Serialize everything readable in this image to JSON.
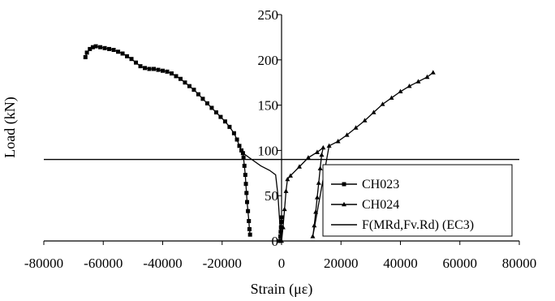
{
  "chart_data": {
    "type": "line",
    "title": "",
    "xlabel": "Strain (με)",
    "ylabel": "Load (kN)",
    "xlim": [
      -80000,
      80000
    ],
    "ylim": [
      0,
      250
    ],
    "xticks": [
      -80000,
      -60000,
      -40000,
      -20000,
      0,
      20000,
      40000,
      60000,
      80000
    ],
    "yticks": [
      0,
      50,
      100,
      150,
      200,
      250
    ],
    "xtick_labels": [
      "-80000",
      "-60000",
      "-40000",
      "-20000",
      "0",
      "20000",
      "40000",
      "60000",
      "80000"
    ],
    "ytick_labels": [
      "0",
      "50",
      "100",
      "150",
      "200",
      "250"
    ],
    "grid": false,
    "legend_position": "bottom-right",
    "series": [
      {
        "name": "CH023",
        "marker": "square",
        "color": "#000000",
        "points": [
          [
            -66000,
            203
          ],
          [
            -65500,
            208
          ],
          [
            -64500,
            212
          ],
          [
            -63500,
            214
          ],
          [
            -62500,
            215
          ],
          [
            -61000,
            214
          ],
          [
            -59500,
            213
          ],
          [
            -58000,
            212
          ],
          [
            -56500,
            211
          ],
          [
            -55000,
            209
          ],
          [
            -53500,
            207
          ],
          [
            -52000,
            204
          ],
          [
            -50500,
            201
          ],
          [
            -49000,
            197
          ],
          [
            -47500,
            193
          ],
          [
            -46000,
            191
          ],
          [
            -44500,
            190
          ],
          [
            -43000,
            190
          ],
          [
            -41500,
            189
          ],
          [
            -40000,
            188
          ],
          [
            -38500,
            187
          ],
          [
            -37000,
            185
          ],
          [
            -35500,
            182
          ],
          [
            -34000,
            179
          ],
          [
            -32500,
            175
          ],
          [
            -31000,
            171
          ],
          [
            -29500,
            167
          ],
          [
            -28000,
            162
          ],
          [
            -26500,
            157
          ],
          [
            -25000,
            152
          ],
          [
            -23500,
            147
          ],
          [
            -22000,
            142
          ],
          [
            -20500,
            137
          ],
          [
            -19000,
            132
          ],
          [
            -17500,
            126
          ],
          [
            -16000,
            119
          ],
          [
            -15000,
            112
          ],
          [
            -14200,
            105
          ],
          [
            -13500,
            100
          ],
          [
            -13000,
            97
          ],
          [
            -12800,
            92
          ],
          [
            -12500,
            83
          ],
          [
            -12200,
            73
          ],
          [
            -12000,
            63
          ],
          [
            -11800,
            53
          ],
          [
            -11600,
            43
          ],
          [
            -11300,
            33
          ],
          [
            -11000,
            22
          ],
          [
            -10800,
            13
          ],
          [
            -10600,
            7
          ],
          [
            -600,
            0
          ],
          [
            -400,
            5
          ],
          [
            -300,
            10
          ],
          [
            -200,
            15
          ],
          [
            -100,
            21
          ],
          [
            0,
            26
          ]
        ]
      },
      {
        "name": "CH024",
        "marker": "triangle",
        "color": "#000000",
        "points": [
          [
            0,
            0
          ],
          [
            500,
            15
          ],
          [
            1000,
            35
          ],
          [
            1500,
            55
          ],
          [
            2000,
            68
          ],
          [
            3000,
            72
          ],
          [
            6000,
            82
          ],
          [
            9000,
            92
          ],
          [
            12000,
            98
          ],
          [
            14000,
            103
          ],
          [
            13500,
            95
          ],
          [
            13000,
            80
          ],
          [
            12500,
            64
          ],
          [
            12000,
            48
          ],
          [
            11500,
            32
          ],
          [
            11000,
            17
          ],
          [
            10500,
            5
          ],
          [
            16000,
            105
          ],
          [
            19000,
            110
          ],
          [
            22000,
            117
          ],
          [
            25000,
            125
          ],
          [
            28000,
            133
          ],
          [
            31000,
            142
          ],
          [
            34000,
            151
          ],
          [
            37000,
            158
          ],
          [
            40000,
            165
          ],
          [
            43000,
            171
          ],
          [
            46000,
            176
          ],
          [
            49000,
            181
          ],
          [
            51000,
            186
          ]
        ]
      },
      {
        "name": "F(MRd,Fv.Rd) (EC3)",
        "marker": "none",
        "color": "#000000",
        "constant_y": 90
      }
    ],
    "ch023_side_branch": [
      [
        -13000,
        97
      ],
      [
        -10000,
        90
      ],
      [
        -7000,
        83
      ],
      [
        -4000,
        78
      ],
      [
        -2000,
        73
      ],
      [
        -1200,
        50
      ],
      [
        -600,
        20
      ],
      [
        -300,
        5
      ]
    ]
  }
}
